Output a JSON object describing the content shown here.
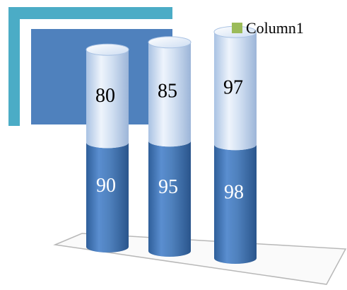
{
  "chart_data": {
    "type": "bar",
    "subtype": "stacked-cylinder-3d",
    "categories": [
      "",
      "",
      ""
    ],
    "series": [
      {
        "values": [
          90,
          95,
          98
        ],
        "color": "#4f81bd"
      },
      {
        "name": "Column1",
        "values": [
          80,
          85,
          97
        ],
        "color": "#c6d9f1"
      }
    ],
    "legend": {
      "position": "top-right",
      "entries": [
        {
          "label": "Column1",
          "swatch_color": "#9bbb59"
        }
      ]
    },
    "title": "",
    "xlabel": "",
    "ylabel": "",
    "grid": false
  },
  "decor": {
    "frame_color": "#4bacc6",
    "panel_color": "#4f81bd"
  }
}
